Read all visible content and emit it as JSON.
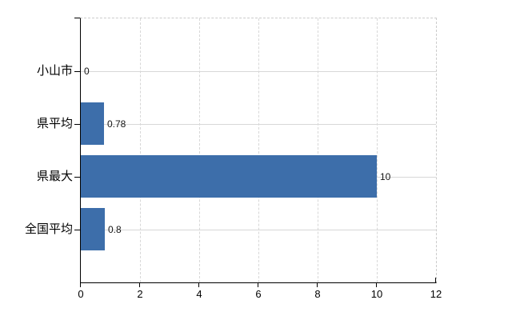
{
  "chart_data": {
    "type": "bar",
    "orientation": "horizontal",
    "title": "",
    "xlabel": "",
    "ylabel": "",
    "categories": [
      "小山市",
      "県平均",
      "県最大",
      "全国平均"
    ],
    "values": [
      0,
      0.78,
      10,
      0.8
    ],
    "value_labels": [
      "0",
      "0.78",
      "10",
      "0.8"
    ],
    "x_ticks": [
      0,
      2,
      4,
      6,
      8,
      10,
      12
    ],
    "x_tick_labels": [
      "0",
      "2",
      "4",
      "6",
      "8",
      "10",
      "12"
    ],
    "xlim": [
      0,
      12
    ],
    "grid": true,
    "grid_vertical_style": "dashed",
    "grid_horizontal_style": "solid",
    "legend": false,
    "colors": {
      "bar": "#3d6eaa",
      "grid": "#d7d7d7",
      "axis": "#000000",
      "background": "#ffffff",
      "text": "#000000"
    }
  }
}
